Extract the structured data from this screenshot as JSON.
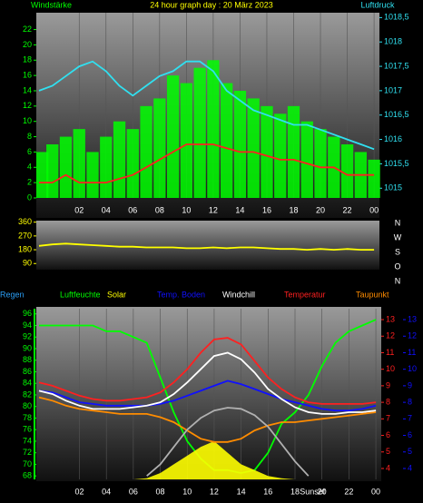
{
  "chart_data": [
    {
      "type": "wind-pressure",
      "title": "24 hour graph day : 20 März 2023",
      "ylabel": "Windstärke",
      "y2label": "Luftdruck",
      "x": [
        -1,
        0,
        1,
        2,
        3,
        4,
        5,
        6,
        7,
        8,
        9,
        10,
        11,
        12,
        13,
        14,
        15,
        16,
        17,
        18,
        19,
        20,
        21,
        22,
        23,
        24
      ],
      "xlim": [
        -1.2,
        24.4
      ],
      "xticks": [
        {
          "value": 2,
          "label": "02"
        },
        {
          "value": 4,
          "label": "04"
        },
        {
          "value": 6,
          "label": "06"
        },
        {
          "value": 8,
          "label": "08"
        },
        10,
        12,
        14,
        16,
        18,
        20,
        22,
        {
          "value": 24,
          "label": "00"
        }
      ],
      "ylim": [
        0,
        24.2
      ],
      "yticks": [
        0,
        2,
        4,
        6,
        8,
        10,
        12,
        14,
        16,
        18,
        20,
        22
      ],
      "y2lim": [
        1014.8,
        1018.6
      ],
      "y2ticks": [
        1015,
        {
          "value": 1015.5,
          "label": "1015,5"
        },
        1016,
        {
          "value": 1016.5,
          "label": "1016,5"
        },
        1017,
        {
          "value": 1017.5,
          "label": "1017,5"
        },
        1018,
        {
          "value": 1018.5,
          "label": "1018,5"
        }
      ],
      "series": [
        {
          "color": "#00ff00",
          "style": "bar",
          "values": [
            6,
            7,
            8,
            9,
            6,
            8,
            10,
            9,
            12,
            13,
            16,
            15,
            17,
            18,
            15,
            14,
            13,
            12,
            11,
            12,
            10,
            9,
            8,
            7,
            6,
            5
          ]
        },
        {
          "color": "#ff2020",
          "style": "line",
          "values": [
            2,
            2,
            3,
            2,
            2,
            2,
            2.5,
            3,
            4,
            5,
            6,
            7,
            7,
            7,
            6.5,
            6,
            6,
            5.5,
            5,
            5,
            4.5,
            4,
            4,
            3,
            3,
            3
          ]
        },
        {
          "color": "#30e0f0",
          "style": "line",
          "axis": "y2",
          "values": [
            1017.0,
            1017.1,
            1017.3,
            1017.5,
            1017.6,
            1017.4,
            1017.1,
            1016.9,
            1017.1,
            1017.3,
            1017.4,
            1017.6,
            1017.6,
            1017.4,
            1017.0,
            1016.8,
            1016.6,
            1016.5,
            1016.4,
            1016.3,
            1016.3,
            1016.2,
            1016.1,
            1016.0,
            1015.9,
            1015.8
          ]
        }
      ]
    },
    {
      "type": "direction",
      "x": [
        -1,
        0,
        1,
        2,
        3,
        4,
        5,
        6,
        7,
        8,
        9,
        10,
        11,
        12,
        13,
        14,
        15,
        16,
        17,
        18,
        19,
        20,
        21,
        22,
        23,
        24
      ],
      "xlim": [
        -1.2,
        24.4
      ],
      "ylim": [
        50,
        370
      ],
      "yticks": [
        90,
        180,
        270,
        360
      ],
      "direction_labels": [
        "N",
        "W",
        "S",
        "O",
        "N"
      ],
      "series": [
        {
          "color": "#ffff00",
          "style": "line",
          "values": [
            205,
            215,
            220,
            215,
            210,
            205,
            200,
            200,
            195,
            195,
            195,
            190,
            190,
            195,
            190,
            195,
            195,
            190,
            185,
            185,
            180,
            185,
            180,
            185,
            180,
            180
          ]
        }
      ]
    },
    {
      "type": "weather",
      "x": [
        -1,
        0,
        1,
        2,
        3,
        4,
        5,
        6,
        7,
        8,
        9,
        10,
        11,
        12,
        13,
        14,
        15,
        16,
        17,
        18,
        19,
        20,
        21,
        22,
        23,
        24
      ],
      "xlim": [
        -1.2,
        24.4
      ],
      "xticks": [
        {
          "value": 2,
          "label": "02"
        },
        {
          "value": 4,
          "label": "04"
        },
        {
          "value": 6,
          "label": "06"
        },
        {
          "value": 8,
          "label": "08"
        },
        10,
        12,
        14,
        16,
        18,
        20,
        22,
        {
          "value": 24,
          "label": "00"
        }
      ],
      "annotation": "Sunset",
      "annotation_x": 19.3,
      "ylim": [
        67.4,
        96.9
      ],
      "yticks": [
        68,
        70,
        72,
        74,
        76,
        78,
        80,
        82,
        84,
        86,
        88,
        90,
        92,
        94,
        96
      ],
      "y2lim": [
        3.34,
        13.66
      ],
      "y2ticks": [
        4,
        5,
        6,
        7,
        8,
        9,
        10,
        11,
        12,
        13
      ],
      "series": [
        {
          "name": "Regen",
          "color": "#2a9df4",
          "style": "line",
          "values": [
            null,
            null,
            null,
            null,
            null,
            null,
            null,
            null,
            null,
            null,
            null,
            null,
            null,
            null,
            null,
            null,
            null,
            null,
            null,
            null,
            null,
            null,
            null,
            null,
            null,
            null
          ]
        },
        {
          "name": "Luftfeuchte",
          "color": "#00ff00",
          "style": "line",
          "values": [
            94,
            94,
            94,
            94,
            94,
            93,
            93,
            92,
            91,
            85,
            79,
            74,
            71,
            69,
            69,
            68.5,
            69,
            72,
            77,
            79,
            82,
            87,
            91,
            93,
            94,
            95
          ]
        },
        {
          "name": "Solar",
          "color": "#ffff00",
          "style": "area",
          "values": [
            67.4,
            67.4,
            67.4,
            67.4,
            67.4,
            67.4,
            67.4,
            67.4,
            67.6,
            68.5,
            70,
            71.5,
            73,
            74,
            72,
            70,
            69,
            68,
            67.6,
            67.4,
            67.4,
            67.4,
            67.4,
            67.4,
            67.4,
            67.4
          ]
        },
        {
          "name": "Temp. Boden",
          "color": "#1010ff",
          "style": "line",
          "axis": "y2",
          "values": [
            8.7,
            8.6,
            8.3,
            8.0,
            7.9,
            7.8,
            7.8,
            7.8,
            7.8,
            7.9,
            8.1,
            8.4,
            8.7,
            9.0,
            9.3,
            9.1,
            8.8,
            8.5,
            8.2,
            8.0,
            7.8,
            7.6,
            7.5,
            7.5,
            7.6,
            7.8
          ]
        },
        {
          "name": "Windchill",
          "color": "#ffffff",
          "style": "line",
          "axis": "y2",
          "values": [
            8.7,
            8.5,
            8.1,
            7.8,
            7.6,
            7.6,
            7.6,
            7.7,
            7.8,
            8.0,
            8.5,
            9.2,
            10.0,
            10.8,
            11.0,
            10.6,
            9.8,
            8.8,
            8.2,
            7.7,
            7.4,
            7.3,
            7.3,
            7.4,
            7.4,
            7.5
          ]
        },
        {
          "name": "Temperatur",
          "color": "#ff2020",
          "style": "line",
          "axis": "y2",
          "values": [
            9.2,
            9.0,
            8.7,
            8.4,
            8.2,
            8.1,
            8.1,
            8.2,
            8.3,
            8.6,
            9.2,
            10.0,
            11.0,
            11.8,
            11.9,
            11.5,
            10.5,
            9.5,
            8.8,
            8.3,
            8.0,
            7.9,
            7.9,
            7.9,
            7.9,
            8.0
          ]
        },
        {
          "name": "Taupunkt",
          "color": "#ff8c00",
          "style": "line",
          "axis": "y2",
          "values": [
            8.3,
            8.1,
            7.8,
            7.6,
            7.5,
            7.4,
            7.3,
            7.3,
            7.3,
            7.1,
            6.8,
            6.3,
            5.8,
            5.6,
            5.6,
            5.8,
            6.3,
            6.6,
            6.8,
            6.8,
            6.9,
            7.0,
            7.1,
            7.2,
            7.3,
            7.4
          ]
        },
        {
          "color": "#b0b0b0",
          "style": "line",
          "values": [
            null,
            null,
            null,
            null,
            null,
            null,
            null,
            null,
            68,
            70,
            73,
            76,
            78,
            79.3,
            79.8,
            79.6,
            78.5,
            76.5,
            73.5,
            70.5,
            68,
            null,
            null,
            null,
            null,
            null
          ]
        }
      ]
    }
  ]
}
